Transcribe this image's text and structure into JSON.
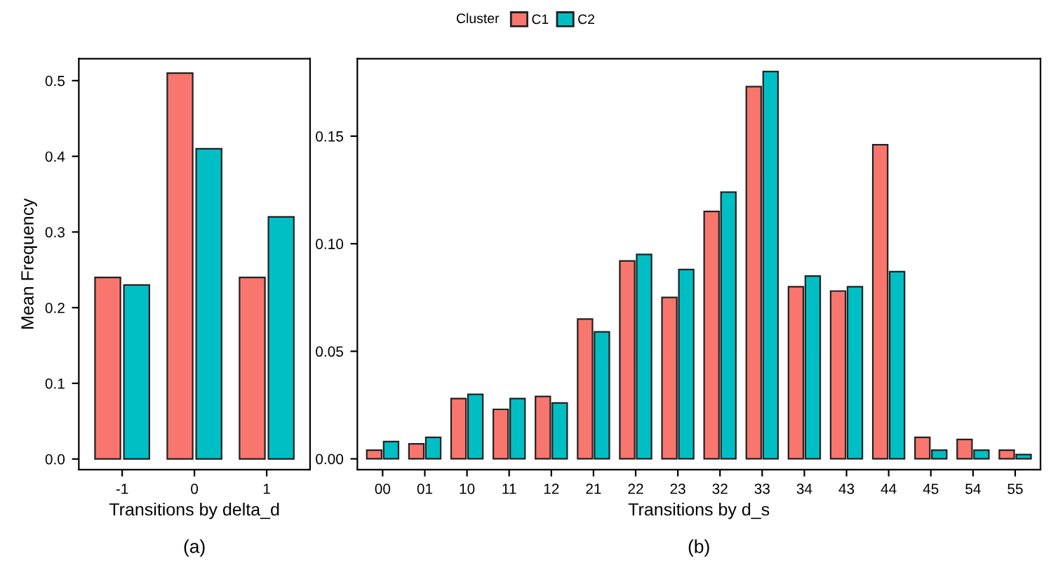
{
  "chart_data": [
    {
      "type": "bar",
      "categories": [
        "-1",
        "0",
        "1"
      ],
      "xlabel": "Transitions by delta_d",
      "ylabel": "Mean Frequency",
      "annotations": [
        "(a)"
      ],
      "legend_title": "Cluster",
      "legend": "top",
      "series": [
        {
          "name": "C1",
          "color": "#f8766d",
          "values": [
            0.24,
            0.51,
            0.24
          ]
        },
        {
          "name": "C2",
          "color": "#00bfc4",
          "values": [
            0.23,
            0.41,
            0.32
          ]
        }
      ],
      "ylim": [
        -0.014,
        0.529
      ],
      "yticks": [
        {
          "value": 0,
          "label": "0.0"
        },
        0.1,
        0.2,
        0.3,
        0.4,
        0.5
      ],
      "grid": false
    },
    {
      "type": "bar",
      "categories": [
        "00",
        "01",
        "10",
        "11",
        "12",
        "21",
        "22",
        "23",
        "32",
        "33",
        "34",
        "43",
        "44",
        "45",
        "54",
        "55"
      ],
      "xlabel": "Transitions by d_s",
      "annotations": [
        "(b)"
      ],
      "series": [
        {
          "color": "#f8766d",
          "values": [
            0.004,
            0.007,
            0.028,
            0.023,
            0.029,
            0.065,
            0.092,
            0.075,
            0.115,
            0.173,
            0.08,
            0.078,
            0.146,
            0.01,
            0.009,
            0.004
          ]
        },
        {
          "color": "#00bfc4",
          "values": [
            0.008,
            0.01,
            0.03,
            0.028,
            0.026,
            0.059,
            0.095,
            0.088,
            0.124,
            0.18,
            0.085,
            0.08,
            0.087,
            0.004,
            0.004,
            0.002
          ]
        }
      ],
      "ylim": [
        -0.005,
        0.186
      ],
      "yticks": [
        {
          "value": 0,
          "label": "0.00"
        },
        {
          "value": 0.05,
          "label": "0.05"
        },
        {
          "value": 0.1,
          "label": "0.10"
        },
        {
          "value": 0.15,
          "label": "0.15"
        }
      ],
      "grid": false
    }
  ]
}
